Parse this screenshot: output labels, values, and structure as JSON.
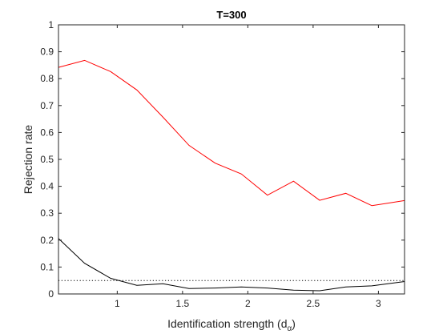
{
  "chart_data": {
    "type": "line",
    "title": "T=300",
    "xlabel": "Identification strength (d",
    "xlabel_sub": "α",
    "xlabel_close": ")",
    "ylabel": "Rejection rate",
    "xlim": [
      0.55,
      3.2
    ],
    "ylim": [
      0,
      1
    ],
    "xticks": [
      1,
      1.5,
      2,
      2.5,
      3
    ],
    "xtick_labels": [
      "1",
      "1.5",
      "2",
      "2.5",
      "3"
    ],
    "yticks": [
      0,
      0.1,
      0.2,
      0.3,
      0.4,
      0.5,
      0.6,
      0.7,
      0.8,
      0.9,
      1
    ],
    "ytick_labels": [
      "0",
      "0.1",
      "0.2",
      "0.3",
      "0.4",
      "0.5",
      "0.6",
      "0.7",
      "0.8",
      "0.9",
      "1"
    ],
    "grid": false,
    "series": [
      {
        "color": "#ff0000",
        "style": "solid",
        "x": [
          0.55,
          0.75,
          0.95,
          1.15,
          1.35,
          1.55,
          1.75,
          1.95,
          2.15,
          2.35,
          2.55,
          2.75,
          2.95,
          3.2
        ],
        "y": [
          0.842,
          0.868,
          0.826,
          0.758,
          0.657,
          0.552,
          0.486,
          0.446,
          0.367,
          0.419,
          0.348,
          0.374,
          0.328,
          0.347
        ]
      },
      {
        "color": "#000000",
        "style": "solid",
        "x": [
          0.55,
          0.75,
          0.95,
          1.15,
          1.35,
          1.55,
          1.75,
          1.95,
          2.15,
          2.35,
          2.55,
          2.75,
          2.95,
          3.2
        ],
        "y": [
          0.206,
          0.114,
          0.058,
          0.032,
          0.038,
          0.02,
          0.022,
          0.026,
          0.022,
          0.014,
          0.012,
          0.026,
          0.03,
          0.046
        ]
      },
      {
        "color": "#000000",
        "style": "dotted",
        "x": [
          0.55,
          3.2
        ],
        "y": [
          0.05,
          0.05
        ]
      }
    ]
  }
}
